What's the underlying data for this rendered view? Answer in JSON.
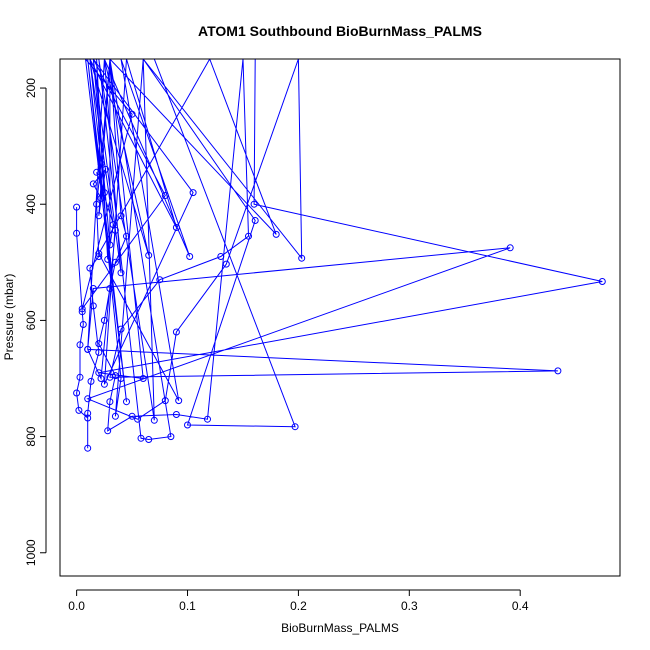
{
  "chart_data": {
    "type": "line",
    "title": "ATOM1 Southbound BioBurnMass_PALMS",
    "xlabel": "BioBurnMass_PALMS",
    "ylabel": "Pressure (mbar)",
    "xlim": [
      -0.015,
      0.49
    ],
    "ylim": [
      1040,
      150
    ],
    "x_ticks": [
      "0.0",
      "0.1",
      "0.2",
      "0.3",
      "0.4"
    ],
    "y_ticks": [
      "200",
      "400",
      "600",
      "800",
      "1000"
    ],
    "grid": false,
    "legend": "none",
    "series_color": "#0000ff",
    "series": [
      {
        "values": [
          {
            "x": 0.0,
            "y": 405
          },
          {
            "x": 0.0,
            "y": 450
          },
          {
            "x": 0.005,
            "y": 585
          },
          {
            "x": 0.006,
            "y": 607
          },
          {
            "x": 0.003,
            "y": 642
          },
          {
            "x": 0.003,
            "y": 698
          },
          {
            "x": 0.0,
            "y": 725
          },
          {
            "x": 0.002,
            "y": 755
          },
          {
            "x": 0.01,
            "y": 768
          },
          {
            "x": 0.01,
            "y": 820
          },
          {
            "x": 0.01,
            "y": 760
          },
          {
            "x": 0.013,
            "y": 705
          },
          {
            "x": 0.02,
            "y": 655
          },
          {
            "x": 0.015,
            "y": 575
          },
          {
            "x": 0.012,
            "y": 510
          },
          {
            "x": 0.02,
            "y": 490
          },
          {
            "x": 0.018,
            "y": 400
          },
          {
            "x": 0.022,
            "y": 330
          },
          {
            "x": 0.03,
            "y": 150
          },
          {
            "x": 0.04,
            "y": 420
          },
          {
            "x": 0.045,
            "y": 455
          },
          {
            "x": 0.035,
            "y": 500
          },
          {
            "x": 0.03,
            "y": 545
          },
          {
            "x": 0.025,
            "y": 600
          },
          {
            "x": 0.02,
            "y": 640
          },
          {
            "x": 0.035,
            "y": 695
          },
          {
            "x": 0.03,
            "y": 740
          },
          {
            "x": 0.028,
            "y": 790
          },
          {
            "x": 0.05,
            "y": 765
          },
          {
            "x": 0.09,
            "y": 762
          },
          {
            "x": 0.118,
            "y": 770
          },
          {
            "x": 0.15,
            "y": 150
          },
          {
            "x": 0.155,
            "y": 455
          },
          {
            "x": 0.13,
            "y": 490
          },
          {
            "x": 0.075,
            "y": 530
          },
          {
            "x": 0.04,
            "y": 615
          },
          {
            "x": 0.03,
            "y": 698
          },
          {
            "x": 0.434,
            "y": 687
          },
          {
            "x": 0.01,
            "y": 650
          },
          {
            "x": 0.015,
            "y": 545
          },
          {
            "x": 0.391,
            "y": 475
          },
          {
            "x": 0.01,
            "y": 735
          },
          {
            "x": 0.055,
            "y": 770
          },
          {
            "x": 0.08,
            "y": 738
          },
          {
            "x": 0.09,
            "y": 620
          },
          {
            "x": 0.135,
            "y": 503
          },
          {
            "x": 0.2,
            "y": 150
          },
          {
            "x": 0.203,
            "y": 493
          },
          {
            "x": 0.06,
            "y": 150
          },
          {
            "x": 0.161,
            "y": 428
          },
          {
            "x": 0.1,
            "y": 780
          },
          {
            "x": 0.197,
            "y": 783
          },
          {
            "x": 0.07,
            "y": 150
          },
          {
            "x": 0.196,
            "y": 150
          },
          {
            "x": 0.161,
            "y": 150
          },
          {
            "x": 0.16,
            "y": 400
          },
          {
            "x": 0.474,
            "y": 533
          },
          {
            "x": 0.02,
            "y": 690
          },
          {
            "x": 0.06,
            "y": 700
          },
          {
            "x": 0.03,
            "y": 150
          },
          {
            "x": 0.085,
            "y": 800
          },
          {
            "x": 0.065,
            "y": 805
          },
          {
            "x": 0.058,
            "y": 803
          },
          {
            "x": 0.02,
            "y": 150
          },
          {
            "x": 0.07,
            "y": 772
          },
          {
            "x": 0.06,
            "y": 150
          },
          {
            "x": 0.035,
            "y": 765
          },
          {
            "x": 0.04,
            "y": 700
          },
          {
            "x": 0.01,
            "y": 150
          },
          {
            "x": 0.045,
            "y": 740
          },
          {
            "x": 0.008,
            "y": 150
          },
          {
            "x": 0.05,
            "y": 245
          },
          {
            "x": 0.005,
            "y": 580
          },
          {
            "x": 0.08,
            "y": 385
          },
          {
            "x": 0.015,
            "y": 150
          },
          {
            "x": 0.105,
            "y": 380
          },
          {
            "x": 0.025,
            "y": 710
          },
          {
            "x": 0.045,
            "y": 150
          },
          {
            "x": 0.09,
            "y": 440
          },
          {
            "x": 0.012,
            "y": 150
          },
          {
            "x": 0.065,
            "y": 488
          },
          {
            "x": 0.025,
            "y": 150
          },
          {
            "x": 0.102,
            "y": 490
          },
          {
            "x": 0.04,
            "y": 150
          },
          {
            "x": 0.092,
            "y": 738
          },
          {
            "x": 0.02,
            "y": 485
          },
          {
            "x": 0.12,
            "y": 150
          },
          {
            "x": 0.18,
            "y": 452
          },
          {
            "x": 0.03,
            "y": 150
          },
          {
            "x": 0.03,
            "y": 470
          },
          {
            "x": 0.015,
            "y": 150
          },
          {
            "x": 0.04,
            "y": 518
          },
          {
            "x": 0.025,
            "y": 150
          },
          {
            "x": 0.01,
            "y": 650
          },
          {
            "x": 0.022,
            "y": 700
          },
          {
            "x": 0.035,
            "y": 445
          },
          {
            "x": 0.018,
            "y": 345
          },
          {
            "x": 0.025,
            "y": 380
          },
          {
            "x": 0.012,
            "y": 150
          },
          {
            "x": 0.033,
            "y": 435
          },
          {
            "x": 0.028,
            "y": 495
          },
          {
            "x": 0.018,
            "y": 150
          },
          {
            "x": 0.022,
            "y": 390
          },
          {
            "x": 0.015,
            "y": 365
          },
          {
            "x": 0.026,
            "y": 340
          },
          {
            "x": 0.02,
            "y": 420
          },
          {
            "x": 0.03,
            "y": 150
          }
        ]
      }
    ]
  }
}
